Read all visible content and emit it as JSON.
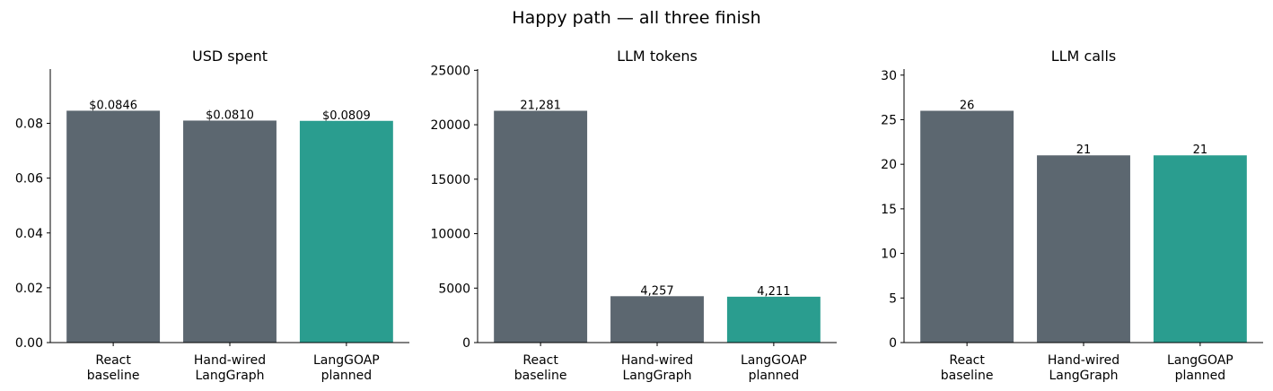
{
  "title": "Happy path — all three finish",
  "chart_data": [
    {
      "type": "bar",
      "title": "USD spent",
      "categories": [
        [
          "React",
          "baseline"
        ],
        [
          "Hand-wired",
          "LangGraph"
        ],
        [
          "LangGOAP",
          "planned"
        ]
      ],
      "values": [
        0.0846,
        0.081,
        0.0809
      ],
      "value_labels": [
        "$0.0846",
        "$0.0810",
        "$0.0809"
      ],
      "colors": [
        "#5c6770",
        "#5c6770",
        "#2a9d8f"
      ],
      "ylim": [
        0,
        0.0998
      ],
      "yticks": [
        {
          "value": 0,
          "label": "0.00"
        },
        {
          "value": 0.02,
          "label": "0.02"
        },
        {
          "value": 0.04,
          "label": "0.04"
        },
        {
          "value": 0.06,
          "label": "0.06"
        },
        {
          "value": 0.08,
          "label": "0.08"
        }
      ]
    },
    {
      "type": "bar",
      "title": "LLM tokens",
      "categories": [
        [
          "React",
          "baseline"
        ],
        [
          "Hand-wired",
          "LangGraph"
        ],
        [
          "LangGOAP",
          "planned"
        ]
      ],
      "values": [
        21281,
        4257,
        4211
      ],
      "value_labels": [
        "21,281",
        "4,257",
        "4,211"
      ],
      "colors": [
        "#5c6770",
        "#5c6770",
        "#2a9d8f"
      ],
      "ylim": [
        0,
        25112
      ],
      "yticks": [
        0,
        5000,
        10000,
        15000,
        20000,
        25000
      ]
    },
    {
      "type": "bar",
      "title": "LLM calls",
      "categories": [
        [
          "React",
          "baseline"
        ],
        [
          "Hand-wired",
          "LangGraph"
        ],
        [
          "LangGOAP",
          "planned"
        ]
      ],
      "values": [
        26,
        21,
        21
      ],
      "colors": [
        "#5c6770",
        "#5c6770",
        "#2a9d8f"
      ],
      "ylim": [
        0,
        30.68
      ],
      "yticks": [
        0,
        5,
        10,
        15,
        20,
        25,
        30
      ]
    }
  ]
}
